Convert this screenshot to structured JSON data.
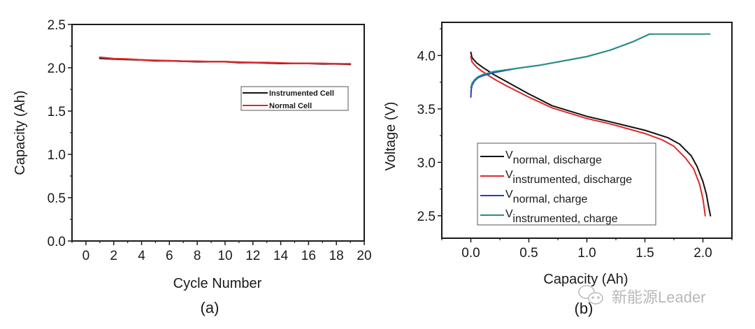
{
  "chart_data": [
    {
      "type": "line",
      "panel_label": "(a)",
      "title": "",
      "xlabel": "Cycle Number",
      "ylabel": "Capacity (Ah)",
      "xlim": [
        -1,
        20
      ],
      "ylim": [
        0,
        2.5
      ],
      "xticks": [
        0,
        2,
        4,
        6,
        8,
        10,
        12,
        14,
        16,
        18,
        20
      ],
      "xtick_labels": [
        "0",
        "2",
        "4",
        "6",
        "8",
        "10",
        "12",
        "14",
        "16",
        "18",
        "20"
      ],
      "yticks": [
        0.0,
        0.5,
        1.0,
        1.5,
        2.0,
        2.5
      ],
      "ytick_labels": [
        "0.0",
        "0.5",
        "1.0",
        "1.5",
        "2.0",
        "2.5"
      ],
      "grid": false,
      "legend_position": "upper-right",
      "series": [
        {
          "name": "Instrumented Cell",
          "color": "#111111",
          "x": [
            1,
            2,
            3,
            4,
            5,
            6,
            7,
            8,
            9,
            10,
            11,
            12,
            13,
            14,
            15,
            16,
            17,
            18,
            19
          ],
          "y": [
            2.11,
            2.1,
            2.095,
            2.09,
            2.08,
            2.08,
            2.075,
            2.07,
            2.07,
            2.07,
            2.06,
            2.06,
            2.055,
            2.05,
            2.05,
            2.05,
            2.045,
            2.045,
            2.04
          ]
        },
        {
          "name": "Normal Cell",
          "color": "#e0282a",
          "x": [
            1,
            2,
            3,
            4,
            5,
            6,
            7,
            8,
            9,
            10,
            11,
            12,
            13,
            14,
            15,
            16,
            17,
            18,
            19
          ],
          "y": [
            2.12,
            2.105,
            2.1,
            2.09,
            2.085,
            2.08,
            2.075,
            2.075,
            2.07,
            2.07,
            2.065,
            2.06,
            2.06,
            2.055,
            2.05,
            2.05,
            2.05,
            2.045,
            2.045
          ]
        }
      ]
    },
    {
      "type": "line",
      "panel_label": "(b)",
      "title": "",
      "xlabel": "Capacity (Ah)",
      "ylabel": "Voltage (V)",
      "xlim": [
        -0.25,
        2.25
      ],
      "ylim": [
        2.29,
        4.31
      ],
      "xticks": [
        0.0,
        0.5,
        1.0,
        1.5,
        2.0
      ],
      "xtick_labels": [
        "0.0",
        "0.5",
        "1.0",
        "1.5",
        "2.0"
      ],
      "yticks": [
        2.5,
        3.0,
        3.5,
        4.0
      ],
      "ytick_labels": [
        "2.5",
        "3.0",
        "3.5",
        "4.0"
      ],
      "grid": false,
      "legend_position": "lower-left",
      "series": [
        {
          "name": "V",
          "subscript": "normal, discharge",
          "color": "#111111",
          "x": [
            0.0,
            0.01,
            0.05,
            0.1,
            0.2,
            0.3,
            0.5,
            0.7,
            1.0,
            1.2,
            1.5,
            1.7,
            1.8,
            1.9,
            1.95,
            2.0,
            2.03,
            2.05,
            2.065
          ],
          "y": [
            4.03,
            3.98,
            3.93,
            3.89,
            3.82,
            3.76,
            3.64,
            3.53,
            3.43,
            3.38,
            3.3,
            3.23,
            3.17,
            3.06,
            2.96,
            2.82,
            2.7,
            2.58,
            2.5
          ]
        },
        {
          "name": "V",
          "subscript": "instrumented, discharge",
          "color": "#e0282a",
          "x": [
            0.0,
            0.01,
            0.05,
            0.1,
            0.2,
            0.3,
            0.5,
            0.7,
            1.0,
            1.2,
            1.5,
            1.65,
            1.75,
            1.85,
            1.92,
            1.97,
            2.0,
            2.01,
            2.02
          ],
          "y": [
            3.99,
            3.94,
            3.89,
            3.85,
            3.78,
            3.72,
            3.61,
            3.51,
            3.41,
            3.36,
            3.27,
            3.21,
            3.15,
            3.04,
            2.94,
            2.8,
            2.66,
            2.58,
            2.5
          ]
        },
        {
          "name": "V",
          "subscript": "normal, charge",
          "color": "#1e3fd0",
          "x": [
            0.0,
            0.003,
            0.01,
            0.03,
            0.06,
            0.1,
            0.2,
            0.4,
            0.6,
            0.8,
            1.0,
            1.2,
            1.4,
            1.54
          ],
          "y": [
            3.61,
            3.68,
            3.72,
            3.76,
            3.79,
            3.81,
            3.84,
            3.88,
            3.91,
            3.95,
            3.99,
            4.05,
            4.13,
            4.2
          ]
        },
        {
          "name": "V",
          "subscript": "instrumented, charge",
          "color": "#2a8f80",
          "x": [
            0.0,
            0.01,
            0.03,
            0.06,
            0.1,
            0.2,
            0.4,
            0.6,
            0.8,
            1.0,
            1.2,
            1.4,
            1.54,
            1.8,
            2.06
          ],
          "y": [
            3.7,
            3.74,
            3.77,
            3.8,
            3.82,
            3.85,
            3.88,
            3.91,
            3.95,
            3.99,
            4.05,
            4.13,
            4.2,
            4.2,
            4.2
          ]
        }
      ]
    }
  ],
  "watermark": {
    "text": "新能源Leader",
    "icon": "wechat-icon"
  }
}
